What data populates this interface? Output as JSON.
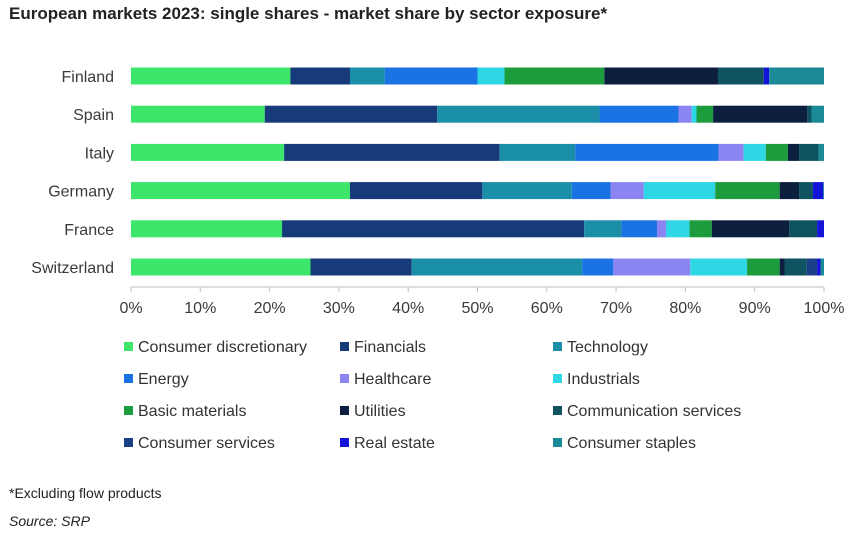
{
  "title": "European markets 2023: single shares - market share by sector exposure*",
  "footnote": "*Excluding flow products",
  "source": "Source: SRP",
  "chart_data": {
    "type": "bar",
    "orientation": "horizontal",
    "stacked": true,
    "title": "European markets 2023: single shares - market share by sector exposure*",
    "xlim": [
      0,
      100
    ],
    "x_ticks": [
      "0%",
      "10%",
      "20%",
      "30%",
      "40%",
      "50%",
      "60%",
      "70%",
      "80%",
      "90%",
      "100%"
    ],
    "grid": false,
    "legend_position": "bottom",
    "categories": [
      "Finland",
      "Spain",
      "Italy",
      "Germany",
      "France",
      "Switzerland"
    ],
    "series": [
      {
        "name": "Consumer discretionary",
        "color": "#3de56b",
        "values": [
          23.0,
          19.3,
          22.1,
          31.6,
          21.8,
          25.9
        ]
      },
      {
        "name": "Financials",
        "color": "#163a7a",
        "values": [
          8.6,
          24.9,
          31.1,
          19.1,
          43.6,
          14.6
        ]
      },
      {
        "name": "Technology",
        "color": "#1b8fa8",
        "values": [
          5.0,
          23.4,
          10.9,
          12.9,
          5.4,
          24.6
        ]
      },
      {
        "name": "Energy",
        "color": "#1a72e3",
        "values": [
          13.4,
          11.4,
          20.7,
          5.6,
          5.1,
          4.5
        ]
      },
      {
        "name": "Healthcare",
        "color": "#8a85f0",
        "values": [
          0.0,
          1.9,
          3.6,
          4.8,
          1.3,
          11.1
        ]
      },
      {
        "name": "Industrials",
        "color": "#2fd6e3",
        "values": [
          3.9,
          0.7,
          3.2,
          10.3,
          3.4,
          8.2
        ]
      },
      {
        "name": "Basic materials",
        "color": "#1c9c3c",
        "values": [
          14.4,
          2.4,
          3.2,
          9.3,
          3.2,
          4.7
        ]
      },
      {
        "name": "Utilities",
        "color": "#0d1f3f",
        "values": [
          16.4,
          13.6,
          1.6,
          2.8,
          11.2,
          0.7
        ]
      },
      {
        "name": "Communication services",
        "color": "#0f5260",
        "values": [
          6.6,
          0.6,
          2.8,
          2.0,
          4.0,
          3.2
        ]
      },
      {
        "name": "Consumer services",
        "color": "#1b3f86",
        "values": [
          0.0,
          0.0,
          0.0,
          0.0,
          0.0,
          1.5
        ]
      },
      {
        "name": "Real estate",
        "color": "#1414d8",
        "values": [
          0.8,
          0.0,
          0.0,
          1.5,
          1.0,
          0.5
        ]
      },
      {
        "name": "Consumer staples",
        "color": "#1a8a96",
        "values": [
          7.9,
          1.8,
          0.8,
          0.1,
          0.0,
          0.5
        ]
      }
    ]
  }
}
